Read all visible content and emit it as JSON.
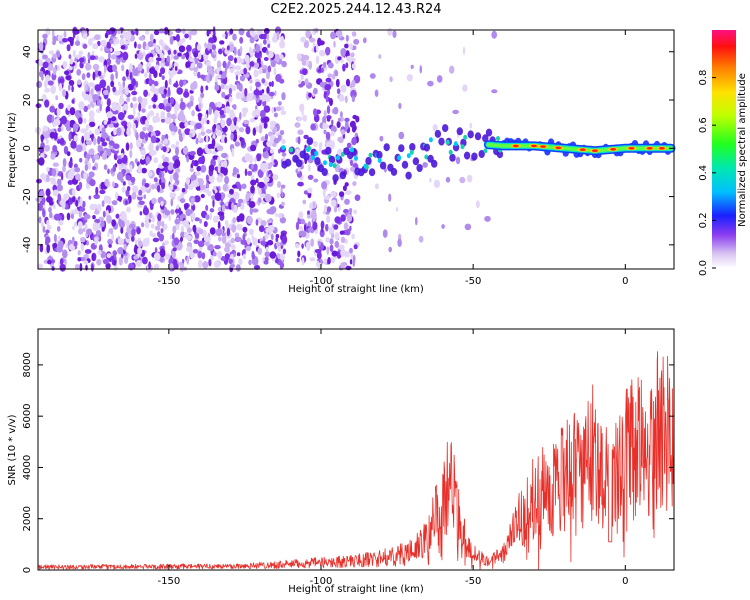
{
  "title": "C2E2.2025.244.12.43.R24",
  "chart_data": [
    {
      "type": "heatmap",
      "name": "spectrogram",
      "xlabel": "Height of straight line (km)",
      "ylabel": "Frequency (Hz)",
      "xlim": [
        -193,
        16
      ],
      "ylim": [
        -50,
        49
      ],
      "xticks": [
        -150,
        -100,
        -50,
        0
      ],
      "yticks": [
        -40,
        -20,
        0,
        20,
        40
      ],
      "colorbar": {
        "label": "Normalized spectral amplitude",
        "range": [
          0,
          1
        ],
        "ticks": [
          0.0,
          0.2,
          0.4,
          0.6,
          0.8
        ],
        "ticklabels": [
          "0.0",
          "0.2",
          "0.4",
          "0.6",
          "0.8"
        ]
      },
      "signal_track": [
        {
          "x": -110,
          "y": -3
        },
        {
          "x": -100,
          "y": -3
        },
        {
          "x": -90,
          "y": -4
        },
        {
          "x": -80,
          "y": -6
        },
        {
          "x": -70,
          "y": -4
        },
        {
          "x": -60,
          "y": 2
        },
        {
          "x": -50,
          "y": 2
        },
        {
          "x": -40,
          "y": 1
        },
        {
          "x": -30,
          "y": 1
        },
        {
          "x": -20,
          "y": 0
        },
        {
          "x": -10,
          "y": -1
        },
        {
          "x": 0,
          "y": 0
        },
        {
          "x": 15,
          "y": 0
        }
      ]
    },
    {
      "type": "line",
      "name": "snr",
      "xlabel": "Height of straight line (km)",
      "ylabel": "SNR (10 * v/v)",
      "xlim": [
        -193,
        16
      ],
      "ylim": [
        0,
        9400
      ],
      "xticks": [
        -150,
        -100,
        -50,
        0
      ],
      "yticks": [
        0,
        2000,
        4000,
        6000,
        8000
      ],
      "color": "#e8302a",
      "envelope": [
        {
          "x": -193,
          "y": 200
        },
        {
          "x": -130,
          "y": 250
        },
        {
          "x": -115,
          "y": 350
        },
        {
          "x": -100,
          "y": 500
        },
        {
          "x": -90,
          "y": 600
        },
        {
          "x": -80,
          "y": 800
        },
        {
          "x": -70,
          "y": 1200
        },
        {
          "x": -65,
          "y": 2000
        },
        {
          "x": -62,
          "y": 3500
        },
        {
          "x": -58,
          "y": 5400
        },
        {
          "x": -55,
          "y": 4200
        },
        {
          "x": -52,
          "y": 1500
        },
        {
          "x": -48,
          "y": 800
        },
        {
          "x": -45,
          "y": 600
        },
        {
          "x": -40,
          "y": 1000
        },
        {
          "x": -35,
          "y": 3000
        },
        {
          "x": -30,
          "y": 4500
        },
        {
          "x": -25,
          "y": 5000
        },
        {
          "x": -20,
          "y": 5800
        },
        {
          "x": -15,
          "y": 6300
        },
        {
          "x": -10,
          "y": 7400
        },
        {
          "x": -5,
          "y": 5200
        },
        {
          "x": 0,
          "y": 7200
        },
        {
          "x": 5,
          "y": 7800
        },
        {
          "x": 10,
          "y": 8500
        },
        {
          "x": 15,
          "y": 8700
        }
      ]
    }
  ]
}
